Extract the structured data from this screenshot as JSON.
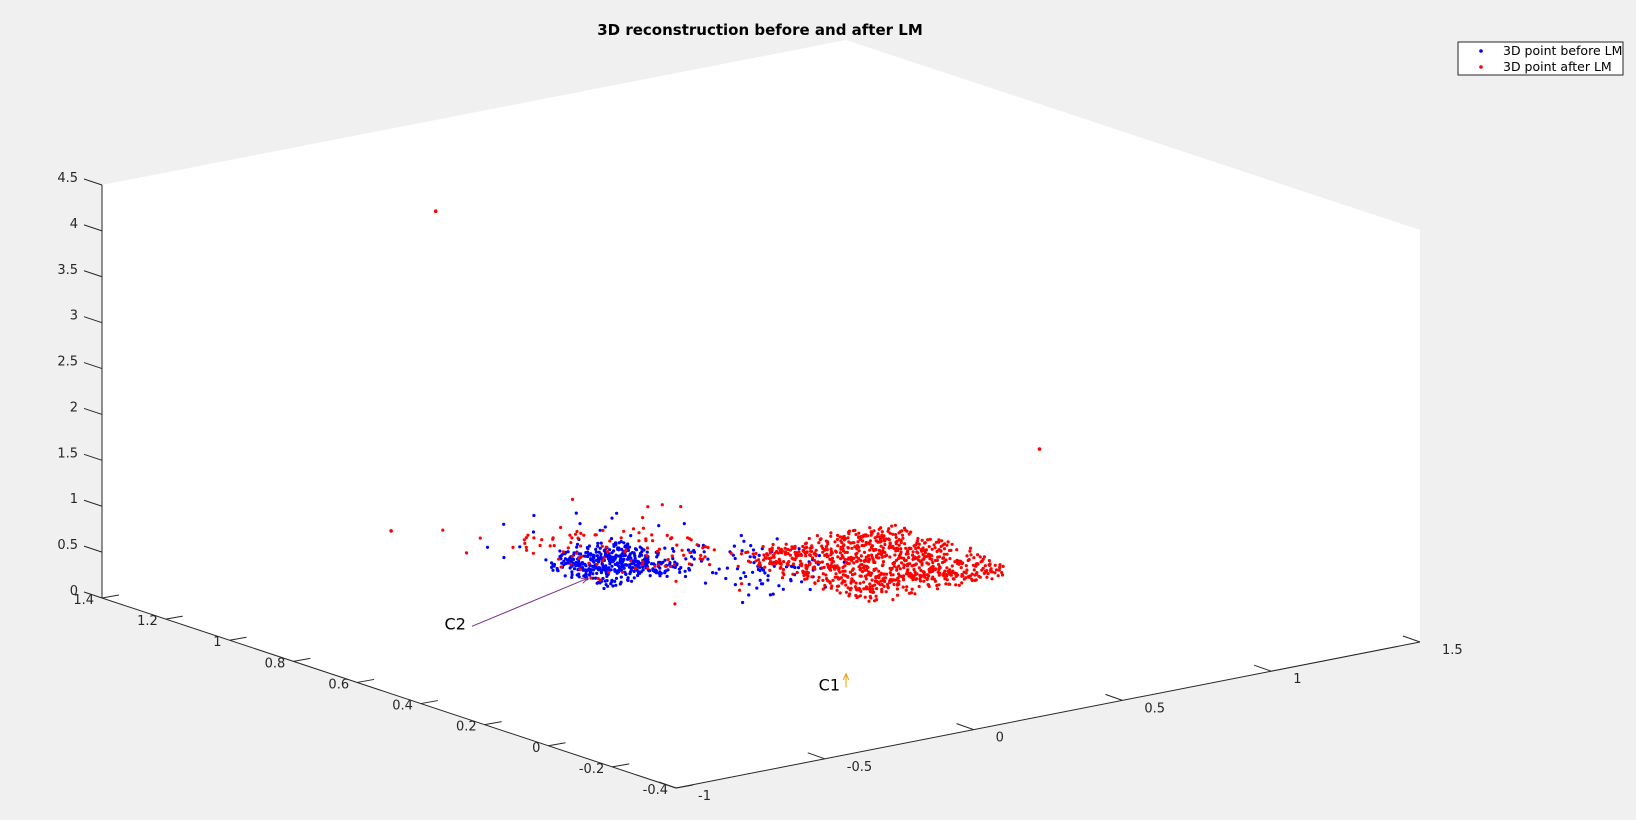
{
  "chart_data": {
    "type": "scatter",
    "projection": "3d",
    "title": "3D reconstruction before and after LM",
    "xlabel": "",
    "ylabel": "",
    "zlabel": "",
    "xlim": [
      -1,
      1.5
    ],
    "ylim": [
      -0.4,
      1.4
    ],
    "zlim": [
      0,
      4.5
    ],
    "x_ticks": [
      "-1",
      "-0.5",
      "0",
      "0.5",
      "1",
      "1.5"
    ],
    "y_ticks": [
      "-0.4",
      "-0.2",
      "0",
      "0.2",
      "0.4",
      "0.6",
      "0.8",
      "1",
      "1.2",
      "1.4"
    ],
    "z_ticks": [
      "0",
      "0.5",
      "1",
      "1.5",
      "2",
      "2.5",
      "3",
      "3.5",
      "4",
      "4.5"
    ],
    "grid": false,
    "legend_position": "top-right",
    "series": [
      {
        "name": "3D point before LM",
        "color": "#0000ff",
        "marker": "dot",
        "clusters": [
          {
            "x": [
              0.1,
              0.35
            ],
            "y": [
              0.85,
              1.05
            ],
            "z": [
              0.02,
              0.22
            ],
            "count": 420
          },
          {
            "x": [
              0.3,
              0.7
            ],
            "y": [
              0.6,
              0.95
            ],
            "z": [
              0.0,
              0.2
            ],
            "count": 100
          },
          {
            "x": [
              0.0,
              0.5
            ],
            "y": [
              0.8,
              1.2
            ],
            "z": [
              0.05,
              0.45
            ],
            "count": 30
          }
        ]
      },
      {
        "name": "3D point after LM",
        "color": "#ff0000",
        "marker": "dot",
        "clusters": [
          {
            "x": [
              0.55,
              1.05
            ],
            "y": [
              0.45,
              0.85
            ],
            "z": [
              0.02,
              0.18
            ],
            "count": 900
          },
          {
            "x": [
              0.1,
              0.55
            ],
            "y": [
              0.85,
              1.2
            ],
            "z": [
              0.08,
              0.16
            ],
            "count": 90
          },
          {
            "x": [
              0.0,
              0.6
            ],
            "y": [
              0.6,
              1.3
            ],
            "z": [
              0.0,
              0.5
            ],
            "count": 30
          }
        ],
        "outliers": [
          {
            "x": -0.2,
            "y": 1.1,
            "z": 4.05
          },
          {
            "x": 1.4,
            "y": 0.7,
            "z": 0.9
          },
          {
            "x": -0.05,
            "y": 1.38,
            "z": 0.15
          }
        ]
      }
    ],
    "annotations": [
      {
        "label": "C2",
        "color": "#7b2d8e",
        "from": {
          "x": -0.4,
          "y": 0.8,
          "z": 0.0
        },
        "to": {
          "x": 0.15,
          "y": 0.95,
          "z": 0.0
        }
      },
      {
        "label": "C1",
        "color": "#e8a000",
        "from": {
          "x": 0.0,
          "y": 0.0,
          "z": 0.0
        },
        "to": {
          "x": 0.0,
          "y": 0.0,
          "z": 0.15
        }
      }
    ]
  }
}
